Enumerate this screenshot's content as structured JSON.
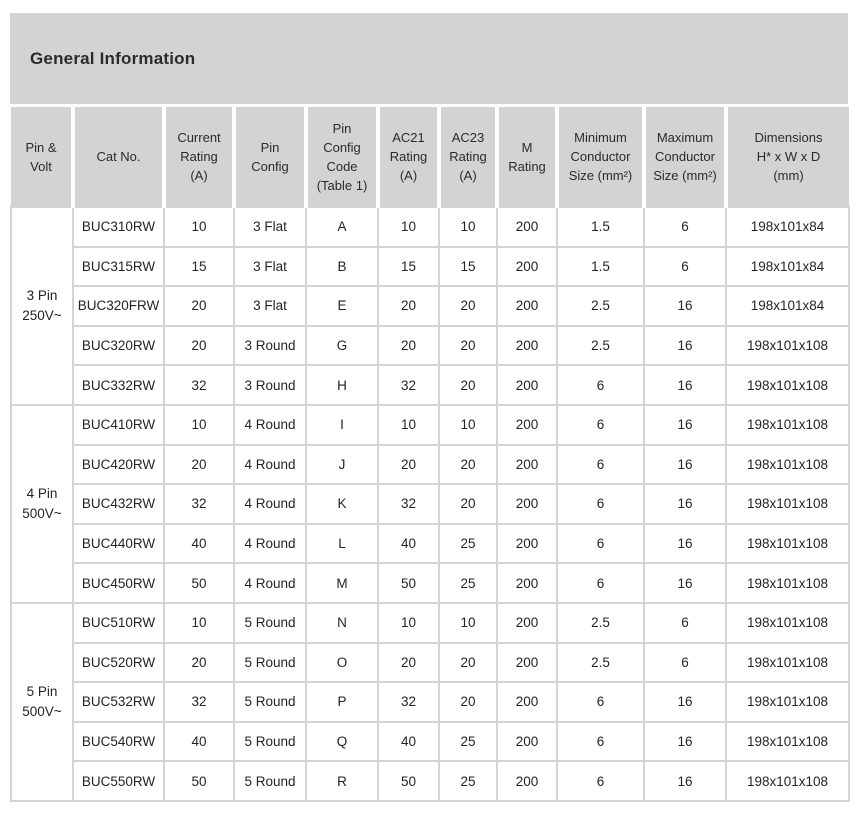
{
  "title": "General Information",
  "colors": {
    "band_gray": "#d1d3d4",
    "grid_gray": "#d2d3d4",
    "text": "#242424"
  },
  "table": {
    "columns": [
      {
        "id": "pin_volt",
        "label": "Pin &\nVolt"
      },
      {
        "id": "cat_no",
        "label": "Cat No."
      },
      {
        "id": "current_rating",
        "label": "Current\nRating\n(A)"
      },
      {
        "id": "pin_config",
        "label": "Pin\nConfig"
      },
      {
        "id": "pin_config_code",
        "label": "Pin\nConfig\nCode\n(Table 1)"
      },
      {
        "id": "ac21_rating",
        "label": "AC21\nRating\n(A)"
      },
      {
        "id": "ac23_rating",
        "label": "AC23\nRating\n(A)"
      },
      {
        "id": "m_rating",
        "label": "M\nRating"
      },
      {
        "id": "min_conductor",
        "label": "Minimum\nConductor\nSize (mm²)"
      },
      {
        "id": "max_conductor",
        "label": "Maximum\nConductor\nSize (mm²)"
      },
      {
        "id": "dimensions",
        "label": "Dimensions\nH* x W x D\n(mm)"
      }
    ],
    "groups": [
      {
        "pin_volt": "3 Pin\n250V~",
        "rows": [
          {
            "cat_no": "BUC310RW",
            "current_rating": "10",
            "pin_config": "3 Flat",
            "pin_config_code": "A",
            "ac21_rating": "10",
            "ac23_rating": "10",
            "m_rating": "200",
            "min_conductor": "1.5",
            "max_conductor": "6",
            "dimensions": "198x101x84"
          },
          {
            "cat_no": "BUC315RW",
            "current_rating": "15",
            "pin_config": "3 Flat",
            "pin_config_code": "B",
            "ac21_rating": "15",
            "ac23_rating": "15",
            "m_rating": "200",
            "min_conductor": "1.5",
            "max_conductor": "6",
            "dimensions": "198x101x84"
          },
          {
            "cat_no": "BUC320FRW",
            "current_rating": "20",
            "pin_config": "3 Flat",
            "pin_config_code": "E",
            "ac21_rating": "20",
            "ac23_rating": "20",
            "m_rating": "200",
            "min_conductor": "2.5",
            "max_conductor": "16",
            "dimensions": "198x101x84"
          },
          {
            "cat_no": "BUC320RW",
            "current_rating": "20",
            "pin_config": "3 Round",
            "pin_config_code": "G",
            "ac21_rating": "20",
            "ac23_rating": "20",
            "m_rating": "200",
            "min_conductor": "2.5",
            "max_conductor": "16",
            "dimensions": "198x101x108"
          },
          {
            "cat_no": "BUC332RW",
            "current_rating": "32",
            "pin_config": "3 Round",
            "pin_config_code": "H",
            "ac21_rating": "32",
            "ac23_rating": "20",
            "m_rating": "200",
            "min_conductor": "6",
            "max_conductor": "16",
            "dimensions": "198x101x108"
          }
        ]
      },
      {
        "pin_volt": "4 Pin\n500V~",
        "rows": [
          {
            "cat_no": "BUC410RW",
            "current_rating": "10",
            "pin_config": "4 Round",
            "pin_config_code": "I",
            "ac21_rating": "10",
            "ac23_rating": "10",
            "m_rating": "200",
            "min_conductor": "6",
            "max_conductor": "16",
            "dimensions": "198x101x108"
          },
          {
            "cat_no": "BUC420RW",
            "current_rating": "20",
            "pin_config": "4 Round",
            "pin_config_code": "J",
            "ac21_rating": "20",
            "ac23_rating": "20",
            "m_rating": "200",
            "min_conductor": "6",
            "max_conductor": "16",
            "dimensions": "198x101x108"
          },
          {
            "cat_no": "BUC432RW",
            "current_rating": "32",
            "pin_config": "4 Round",
            "pin_config_code": "K",
            "ac21_rating": "32",
            "ac23_rating": "20",
            "m_rating": "200",
            "min_conductor": "6",
            "max_conductor": "16",
            "dimensions": "198x101x108"
          },
          {
            "cat_no": "BUC440RW",
            "current_rating": "40",
            "pin_config": "4 Round",
            "pin_config_code": "L",
            "ac21_rating": "40",
            "ac23_rating": "25",
            "m_rating": "200",
            "min_conductor": "6",
            "max_conductor": "16",
            "dimensions": "198x101x108"
          },
          {
            "cat_no": "BUC450RW",
            "current_rating": "50",
            "pin_config": "4 Round",
            "pin_config_code": "M",
            "ac21_rating": "50",
            "ac23_rating": "25",
            "m_rating": "200",
            "min_conductor": "6",
            "max_conductor": "16",
            "dimensions": "198x101x108"
          }
        ]
      },
      {
        "pin_volt": "5 Pin\n500V~",
        "rows": [
          {
            "cat_no": "BUC510RW",
            "current_rating": "10",
            "pin_config": "5 Round",
            "pin_config_code": "N",
            "ac21_rating": "10",
            "ac23_rating": "10",
            "m_rating": "200",
            "min_conductor": "2.5",
            "max_conductor": "6",
            "dimensions": "198x101x108"
          },
          {
            "cat_no": "BUC520RW",
            "current_rating": "20",
            "pin_config": "5 Round",
            "pin_config_code": "O",
            "ac21_rating": "20",
            "ac23_rating": "20",
            "m_rating": "200",
            "min_conductor": "2.5",
            "max_conductor": "6",
            "dimensions": "198x101x108"
          },
          {
            "cat_no": "BUC532RW",
            "current_rating": "32",
            "pin_config": "5 Round",
            "pin_config_code": "P",
            "ac21_rating": "32",
            "ac23_rating": "20",
            "m_rating": "200",
            "min_conductor": "6",
            "max_conductor": "16",
            "dimensions": "198x101x108"
          },
          {
            "cat_no": "BUC540RW",
            "current_rating": "40",
            "pin_config": "5 Round",
            "pin_config_code": "Q",
            "ac21_rating": "40",
            "ac23_rating": "25",
            "m_rating": "200",
            "min_conductor": "6",
            "max_conductor": "16",
            "dimensions": "198x101x108"
          },
          {
            "cat_no": "BUC550RW",
            "current_rating": "50",
            "pin_config": "5 Round",
            "pin_config_code": "R",
            "ac21_rating": "50",
            "ac23_rating": "25",
            "m_rating": "200",
            "min_conductor": "6",
            "max_conductor": "16",
            "dimensions": "198x101x108"
          }
        ]
      }
    ]
  }
}
